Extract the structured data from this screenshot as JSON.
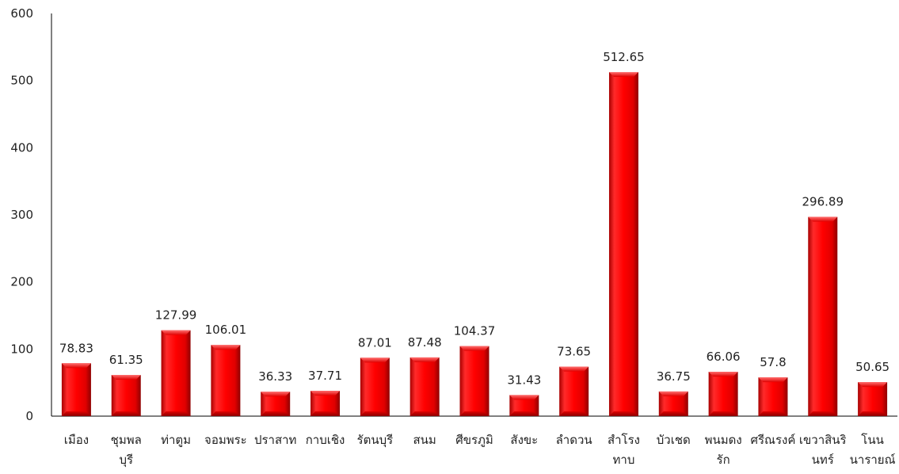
{
  "chart_data": {
    "type": "bar",
    "categories": [
      [
        "เมือง"
      ],
      [
        "ชุมพล",
        "บุรี"
      ],
      [
        "ท่าตูม"
      ],
      [
        "จอมพระ"
      ],
      [
        "ปราสาท"
      ],
      [
        "กาบเชิง"
      ],
      [
        "รัตนบุรี"
      ],
      [
        "สนม"
      ],
      [
        "ศีขรภูมิ"
      ],
      [
        "สังขะ"
      ],
      [
        "ลำดวน"
      ],
      [
        "สำโรง",
        "ทาบ"
      ],
      [
        "บัวเชด"
      ],
      [
        "พนมดง",
        "รัก"
      ],
      [
        "ศรีณรงค์"
      ],
      [
        "เขวาสินริ",
        "นทร์"
      ],
      [
        "โนน",
        "นารายณ์"
      ]
    ],
    "values": [
      78.83,
      61.35,
      127.99,
      106.01,
      36.33,
      37.71,
      87.01,
      87.48,
      104.37,
      31.43,
      73.65,
      512.65,
      36.75,
      66.06,
      57.8,
      296.89,
      50.65
    ],
    "value_labels": [
      "78.83",
      "61.35",
      "127.99",
      "106.01",
      "36.33",
      "37.71",
      "87.01",
      "87.48",
      "104.37",
      "31.43",
      "73.65",
      "512.65",
      "36.75",
      "66.06",
      "57.8",
      "296.89",
      "50.65"
    ],
    "yticks": [
      "0",
      "100",
      "200",
      "300",
      "400",
      "500",
      "600"
    ],
    "ylim": [
      0,
      600
    ],
    "title": "",
    "xlabel": "",
    "ylabel": "",
    "grid": false,
    "bar_color": "#e00000",
    "bar_dark": "#9a0000",
    "bar_light": "#ff5a5a"
  }
}
